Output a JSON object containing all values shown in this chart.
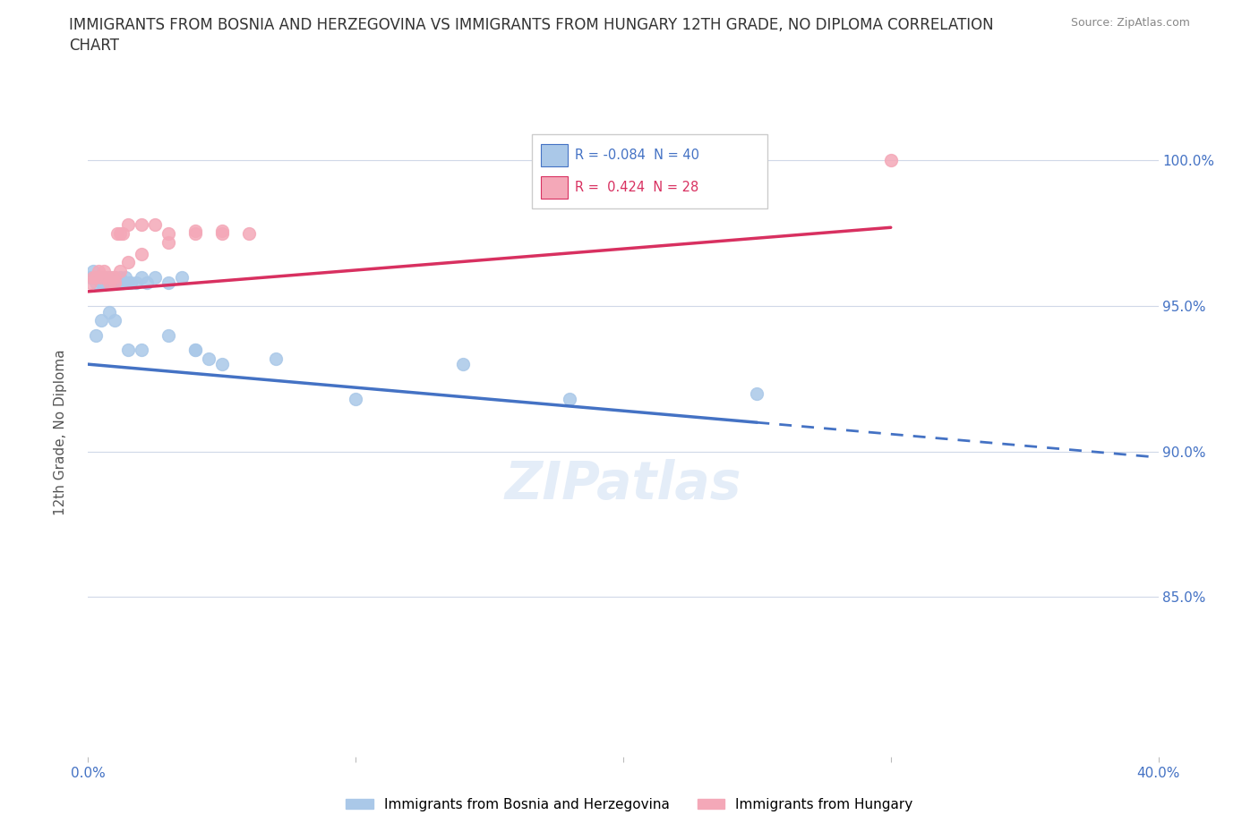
{
  "title_line1": "IMMIGRANTS FROM BOSNIA AND HERZEGOVINA VS IMMIGRANTS FROM HUNGARY 12TH GRADE, NO DIPLOMA CORRELATION",
  "title_line2": "CHART",
  "source": "Source: ZipAtlas.com",
  "ylabel": "12th Grade, No Diploma",
  "bosnia_R": -0.084,
  "bosnia_N": 40,
  "hungary_R": 0.424,
  "hungary_N": 28,
  "bosnia_color": "#aac8e8",
  "hungary_color": "#f4a8b8",
  "bosnia_line_color": "#4472C4",
  "hungary_line_color": "#d83060",
  "xlim": [
    0,
    40
  ],
  "ylim": [
    0.795,
    1.018
  ],
  "x_ticks": [
    0,
    10,
    20,
    30,
    40
  ],
  "x_tick_labels": [
    "0.0%",
    "",
    "",
    "",
    "40.0%"
  ],
  "y_ticks_right": [
    0.85,
    0.9,
    0.95,
    1.0
  ],
  "y_tick_labels_right": [
    "85.0%",
    "90.0%",
    "95.0%",
    "100.0%"
  ],
  "bosnia_x": [
    0.1,
    0.2,
    0.3,
    0.4,
    0.5,
    0.5,
    0.6,
    0.7,
    0.8,
    0.9,
    1.0,
    1.0,
    1.1,
    1.2,
    1.3,
    1.4,
    1.5,
    1.6,
    1.8,
    2.0,
    2.2,
    2.5,
    3.0,
    3.5,
    4.0,
    4.5,
    0.3,
    0.5,
    0.8,
    1.0,
    1.5,
    2.0,
    3.0,
    4.0,
    5.0,
    7.0,
    10.0,
    14.0,
    18.0,
    25.0
  ],
  "bosnia_y": [
    0.96,
    0.962,
    0.958,
    0.96,
    0.96,
    0.958,
    0.958,
    0.96,
    0.96,
    0.958,
    0.96,
    0.958,
    0.958,
    0.96,
    0.958,
    0.96,
    0.958,
    0.958,
    0.958,
    0.96,
    0.958,
    0.96,
    0.958,
    0.96,
    0.935,
    0.932,
    0.94,
    0.945,
    0.948,
    0.945,
    0.935,
    0.935,
    0.94,
    0.935,
    0.93,
    0.932,
    0.918,
    0.93,
    0.918,
    0.92
  ],
  "hungary_x": [
    0.1,
    0.2,
    0.3,
    0.4,
    0.5,
    0.6,
    0.7,
    0.8,
    0.9,
    1.0,
    1.1,
    1.2,
    1.3,
    1.5,
    2.0,
    2.5,
    3.0,
    4.0,
    5.0,
    6.0,
    1.0,
    1.2,
    1.5,
    2.0,
    3.0,
    4.0,
    5.0,
    30.0
  ],
  "hungary_y": [
    0.958,
    0.96,
    0.96,
    0.962,
    0.96,
    0.962,
    0.96,
    0.958,
    0.96,
    0.958,
    0.975,
    0.975,
    0.975,
    0.978,
    0.978,
    0.978,
    0.975,
    0.976,
    0.975,
    0.975,
    0.96,
    0.962,
    0.965,
    0.968,
    0.972,
    0.975,
    0.976,
    1.0
  ],
  "bosnia_trend_x0": 0,
  "bosnia_trend_x1": 25,
  "bosnia_trend_xdash0": 25,
  "bosnia_trend_xdash1": 40,
  "hungary_trend_x0": 0,
  "hungary_trend_x1": 30
}
